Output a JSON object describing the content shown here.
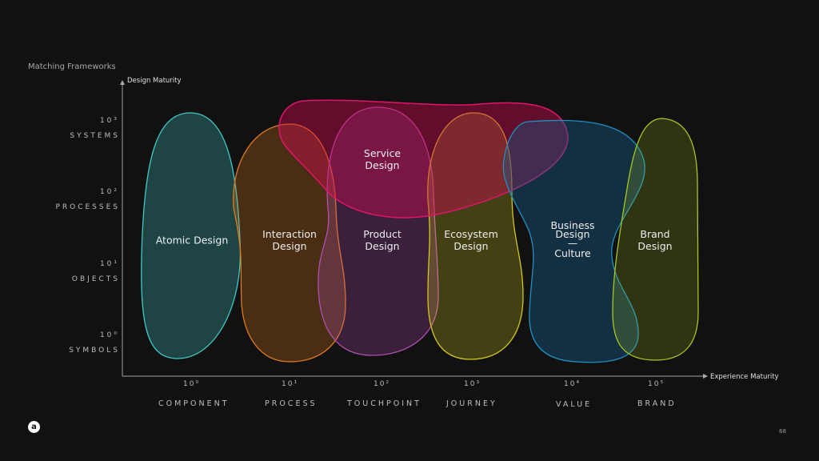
{
  "title": "Matching Frameworks",
  "y_axis": {
    "label": "Design Maturity",
    "ticks": [
      {
        "exp": "10³",
        "name": "SYSTEMS"
      },
      {
        "exp": "10²",
        "name": "PROCESSES"
      },
      {
        "exp": "10¹",
        "name": "OBJECTS"
      },
      {
        "exp": "10⁰",
        "name": "SYMBOLS"
      }
    ]
  },
  "x_axis": {
    "label": "Experience Maturity",
    "ticks": [
      {
        "exp": "10⁰",
        "name": "COMPONENT"
      },
      {
        "exp": "10¹",
        "name": "PROCESS"
      },
      {
        "exp": "10²",
        "name": "TOUCHPOINT"
      },
      {
        "exp": "10³",
        "name": "JOURNEY"
      },
      {
        "exp": "10⁴",
        "name": "VALUE"
      },
      {
        "exp": "10⁵",
        "name": "BRAND"
      }
    ]
  },
  "frameworks": [
    {
      "line1": "Atomic Design",
      "line2": "",
      "color": "#3fc9c9"
    },
    {
      "line1": "Interaction",
      "line2": "Design",
      "color": "#e07a1e"
    },
    {
      "line1": "Product",
      "line2": "Design",
      "color": "#b04fb0"
    },
    {
      "line1": "Ecosystem",
      "line2": "Design",
      "color": "#d4c81e"
    },
    {
      "line1": "Business",
      "line2": "Design",
      "line3": "—",
      "line4": "Culture",
      "color": "#1f8fc0"
    },
    {
      "line1": "Brand",
      "line2": "Design",
      "color": "#a8c81e"
    },
    {
      "line1": "Service",
      "line2": "Design",
      "color": "#e0146a"
    }
  ],
  "logo": "a",
  "page_number": "68"
}
